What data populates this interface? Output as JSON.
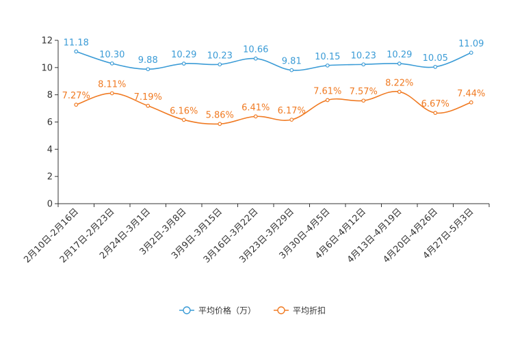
{
  "chart_data": {
    "type": "line",
    "title": "",
    "xlabel": "",
    "ylabel": "",
    "ylim": [
      0,
      12
    ],
    "yticks": [
      0,
      2,
      4,
      6,
      8,
      10,
      12
    ],
    "grid": false,
    "legend_position": "bottom-center",
    "categories": [
      "2月10日-2月16日",
      "2月17日-2月23日",
      "2月24日-3月1日",
      "3月2日-3月8日",
      "3月9日-3月15日",
      "3月16日-3月22日",
      "3月23日-3月29日",
      "3月30日-4月5日",
      "4月6日-4月12日",
      "4月13日-4月19日",
      "4月20日-4月26日",
      "4月27日-5月3日"
    ],
    "series": [
      {
        "name": "平均价格（万）",
        "color": "#3a9bd6",
        "values": [
          11.18,
          10.3,
          9.88,
          10.29,
          10.23,
          10.66,
          9.81,
          10.15,
          10.23,
          10.29,
          10.05,
          11.09
        ],
        "labels": [
          "11.18",
          "10.30",
          "9.88",
          "10.29",
          "10.23",
          "10.66",
          "9.81",
          "10.15",
          "10.23",
          "10.29",
          "10.05",
          "11.09"
        ]
      },
      {
        "name": "平均折扣",
        "color": "#f07a22",
        "values": [
          7.27,
          8.11,
          7.19,
          6.16,
          5.86,
          6.41,
          6.17,
          7.61,
          7.57,
          8.22,
          6.67,
          7.44
        ],
        "labels": [
          "7.27%",
          "8.11%",
          "7.19%",
          "6.16%",
          "5.86%",
          "6.41%",
          "6.17%",
          "7.61%",
          "7.57%",
          "8.22%",
          "6.67%",
          "7.44%"
        ]
      }
    ]
  }
}
